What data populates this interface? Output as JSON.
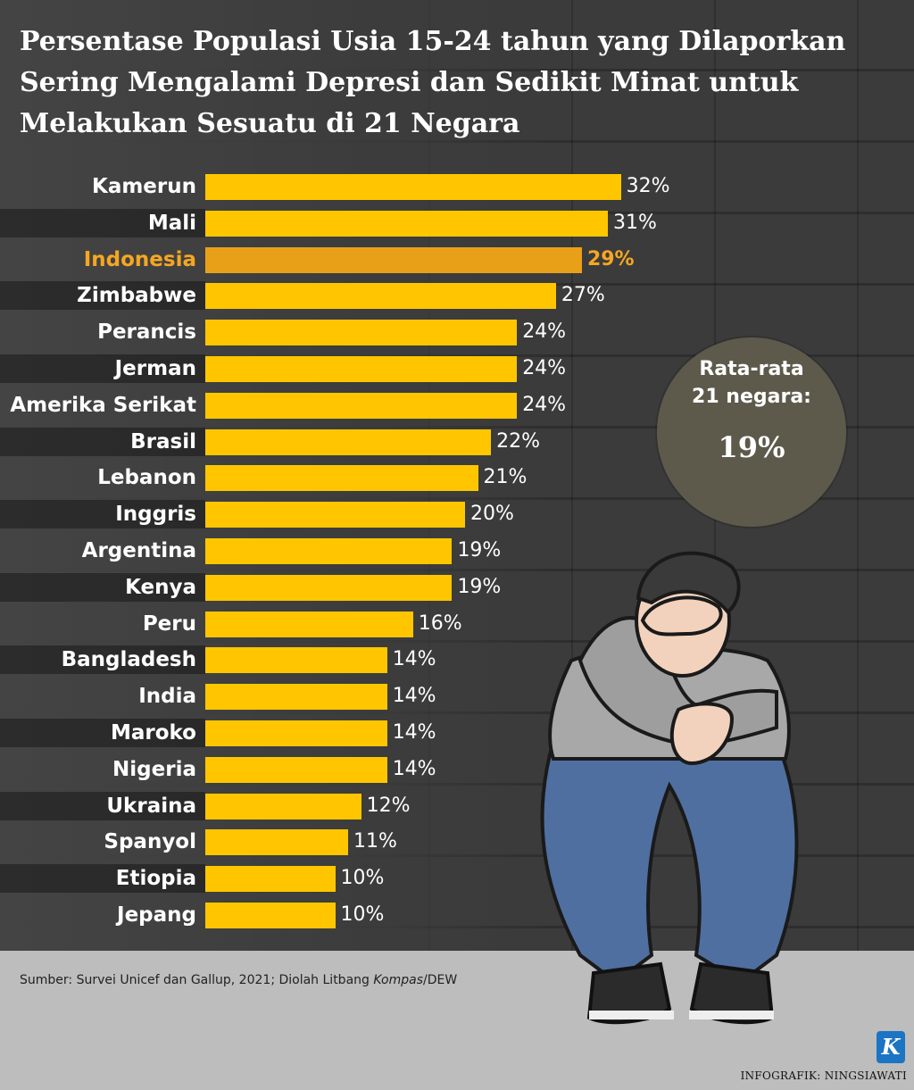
{
  "title": "Persentase Populasi Usia 15-24 tahun yang Dilaporkan Sering Mengalami Depresi dan Sedikit Minat untuk Melakukan Sesuatu di 21 Negara",
  "average": {
    "line1": "Rata-rata",
    "line2": "21 negara:",
    "value": "19%"
  },
  "source": {
    "prefix": "Sumber: Survei Unicef dan Gallup, 2021; Diolah Litbang ",
    "italic": "Kompas",
    "suffix": "/DEW"
  },
  "credit": "INFOGRAFIK: NINGSIAWATI",
  "logo_letter": "K",
  "colors": {
    "bar": "#ffc600",
    "highlight": "#e9a019",
    "highlight_text": "#f5a623"
  },
  "icons": [
    "person-illustration",
    "kompas-logo"
  ],
  "chart_data": {
    "type": "bar",
    "orientation": "horizontal",
    "categories": [
      "Kamerun",
      "Mali",
      "Indonesia",
      "Zimbabwe",
      "Perancis",
      "Jerman",
      "Amerika Serikat",
      "Brasil",
      "Lebanon",
      "Inggris",
      "Argentina",
      "Kenya",
      "Peru",
      "Bangladesh",
      "India",
      "Maroko",
      "Nigeria",
      "Ukraina",
      "Spanyol",
      "Etiopia",
      "Jepang"
    ],
    "values": [
      32,
      31,
      29,
      27,
      24,
      24,
      24,
      22,
      21,
      20,
      19,
      19,
      16,
      14,
      14,
      14,
      14,
      12,
      11,
      10,
      10
    ],
    "value_labels": [
      "32%",
      "31%",
      "29%",
      "27%",
      "24%",
      "24%",
      "24%",
      "22%",
      "21%",
      "20%",
      "19%",
      "19%",
      "16%",
      "14%",
      "14%",
      "14%",
      "14%",
      "12%",
      "11%",
      "10%",
      "10%"
    ],
    "highlight": "Indonesia",
    "unit": "%",
    "xlim": [
      0,
      32
    ],
    "grid": false,
    "legend": "none"
  }
}
